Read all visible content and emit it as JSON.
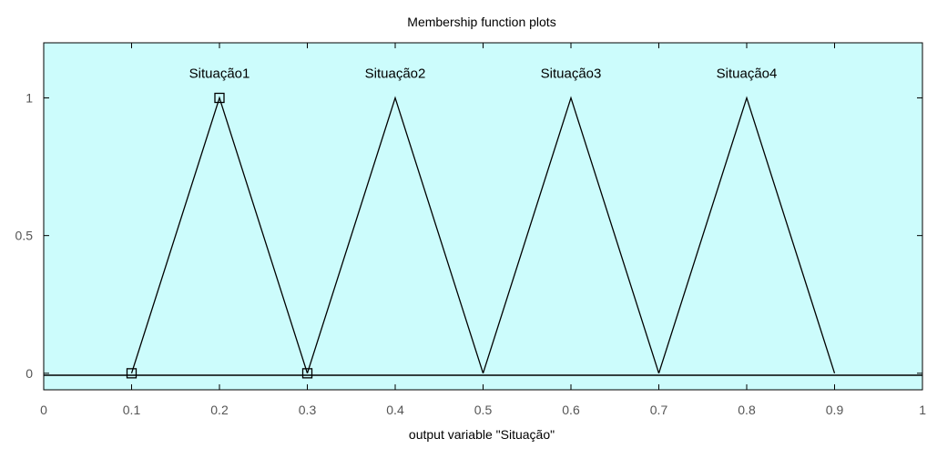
{
  "chart_data": {
    "type": "line",
    "title": "Membership function plots",
    "xlabel": "output variable \"Situação\"",
    "ylabel": "",
    "xlim": [
      0,
      1
    ],
    "ylim": [
      -0.06,
      1.2
    ],
    "xticks": [
      "0",
      "0.1",
      "0.2",
      "0.3",
      "0.4",
      "0.5",
      "0.6",
      "0.7",
      "0.8",
      "0.9",
      "1"
    ],
    "yticks": [
      "0",
      "0.5",
      "1"
    ],
    "background_color": "#ccfcfc",
    "line_color": "#000000",
    "series": [
      {
        "name": "Situação1",
        "x": [
          0.1,
          0.2,
          0.3
        ],
        "y": [
          0,
          1,
          0
        ],
        "selected": true
      },
      {
        "name": "Situação2",
        "x": [
          0.3,
          0.4,
          0.5
        ],
        "y": [
          0,
          1,
          0
        ]
      },
      {
        "name": "Situação3",
        "x": [
          0.5,
          0.6,
          0.7
        ],
        "y": [
          0,
          1,
          0
        ]
      },
      {
        "name": "Situação4",
        "x": [
          0.7,
          0.8,
          0.9
        ],
        "y": [
          0,
          1,
          0
        ]
      }
    ]
  }
}
